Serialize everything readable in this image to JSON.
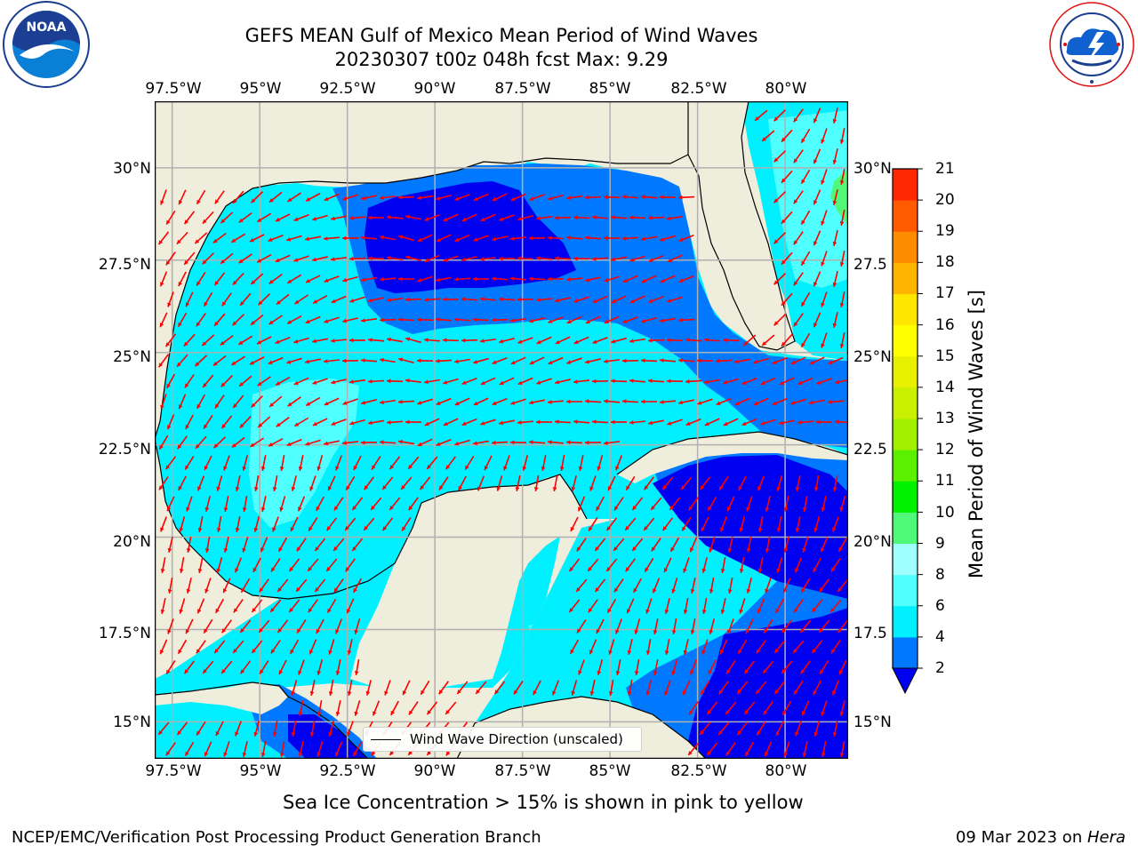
{
  "title": {
    "line1": "GEFS MEAN Gulf of Mexico Mean Period of Wind Waves",
    "line2": "20230307 t00z 048h fcst   Max: 9.29"
  },
  "logos": {
    "left": {
      "icon": "noaa-logo",
      "text": "NOAA"
    },
    "right": {
      "icon": "national-weather-service-logo"
    }
  },
  "map": {
    "lon_ticks_top": [
      "97.5°W",
      "95°W",
      "92.5°W",
      "90°W",
      "87.5°W",
      "85°W",
      "82.5°W",
      "80°W"
    ],
    "lon_ticks_bottom": [
      "97.5°W",
      "95°W",
      "92.5°W",
      "90°W",
      "87.5°W",
      "85°W",
      "82.5°W",
      "80°W"
    ],
    "lat_ticks_left": [
      "30°N",
      "27.5°N",
      "25°N",
      "22.5°N",
      "20°N",
      "17.5°N",
      "15°N"
    ],
    "lat_ticks_right": [
      "30°N",
      "27.5",
      "25°N",
      "22.5",
      "20°N",
      "17.5",
      "15°N"
    ],
    "lon_values": [
      -97.5,
      -95,
      -92.5,
      -90,
      -87.5,
      -85,
      -82.5,
      -80
    ],
    "lat_values": [
      30,
      27.5,
      25,
      22.5,
      20,
      17.5,
      15
    ],
    "extent": {
      "lon": [
        -98,
        -78.2
      ],
      "lat": [
        14,
        31.8
      ]
    },
    "legend_label": "Wind Wave Direction (unscaled)",
    "colors": {
      "land": "#efeedc",
      "level_0_2": "#0000f0",
      "level_2_4": "#0078ff",
      "level_4_6": "#00f0ff",
      "level_6_8": "#50ffff",
      "level_8_9": "#a0ffff",
      "level_9_10": "#50f87a",
      "arrow": "#ff0000",
      "grid": "#b0b0b0"
    }
  },
  "colorbar": {
    "label": "Mean Period of Wind Waves [s]",
    "ticks": [
      "2",
      "4",
      "6",
      "8",
      "9",
      "10",
      "11",
      "12",
      "13",
      "14",
      "15",
      "16",
      "17",
      "18",
      "19",
      "20",
      "21"
    ],
    "colors": [
      "#0078ff",
      "#00f0ff",
      "#50ffff",
      "#a0ffff",
      "#50f87a",
      "#00f000",
      "#5af000",
      "#a0f000",
      "#c8f000",
      "#e6f000",
      "#ffff00",
      "#ffe600",
      "#ffb400",
      "#ff8c00",
      "#ff5a00",
      "#ff2800"
    ],
    "under_color": "#0000f0"
  },
  "caption": "Sea Ice Concentration > 15% is shown in pink to yellow",
  "footer": {
    "left": "NCEP/EMC/Verification Post Processing Product Generation Branch",
    "date": "09 Mar 2023 on ",
    "host": "Hera"
  }
}
